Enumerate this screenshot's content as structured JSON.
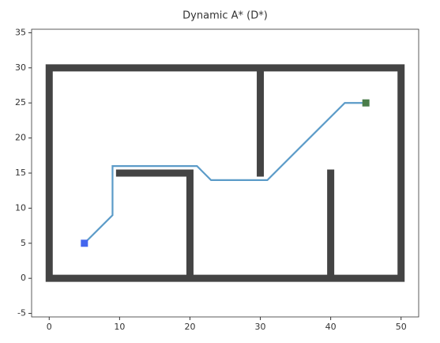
{
  "chart_data": {
    "type": "line",
    "title": "Dynamic A* (D*)",
    "xlim": [
      -2.5,
      52.5
    ],
    "ylim": [
      -5.5,
      35.5
    ],
    "xticks": [
      0,
      10,
      20,
      30,
      40,
      50
    ],
    "yticks": [
      -5,
      0,
      5,
      10,
      15,
      20,
      25,
      30,
      35
    ],
    "obstacles": {
      "color": "#444444",
      "x": [
        0,
        50,
        null,
        0,
        50,
        null,
        0,
        0,
        null,
        50,
        50,
        null,
        30,
        30,
        null,
        10,
        20,
        20,
        null,
        40,
        40
      ],
      "y": [
        0,
        0,
        null,
        30,
        30,
        null,
        0,
        30,
        null,
        0,
        30,
        null,
        15,
        30,
        null,
        15,
        15,
        0,
        null,
        0,
        15
      ]
    },
    "path": {
      "color": "#5b9bc8",
      "x": [
        5,
        9,
        9,
        21,
        23,
        31,
        42,
        45
      ],
      "y": [
        5,
        9,
        16,
        16,
        14,
        14,
        25,
        25
      ]
    },
    "start": {
      "color": "#4466ee",
      "x": 5,
      "y": 5
    },
    "goal": {
      "color": "#4a7d4a",
      "x": 45,
      "y": 25
    }
  }
}
